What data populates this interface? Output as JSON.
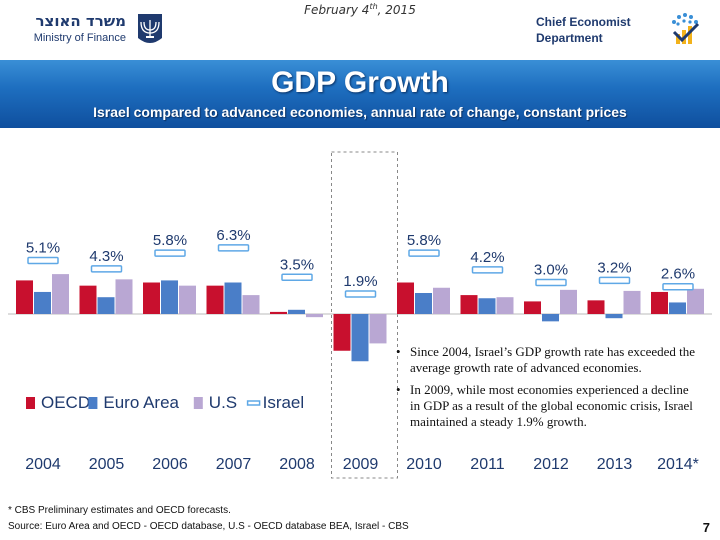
{
  "header": {
    "date_main": "February 4",
    "date_sup": "th",
    "date_year": ", 2015",
    "ministry_hebrew": "משרד האוצר",
    "ministry_english": "Ministry of Finance",
    "department": "Chief Economist Department",
    "emblem_icon": "menorah-emblem-icon",
    "department_icon": "chart-check-logo-icon"
  },
  "banner": {
    "title": "GDP Growth",
    "subtitle": "Israel compared to advanced economies, annual rate of change, constant prices"
  },
  "chart_data": {
    "type": "bar",
    "categories": [
      "2004",
      "2005",
      "2006",
      "2007",
      "2008",
      "2009",
      "2010",
      "2011",
      "2012",
      "2013",
      "2014*"
    ],
    "series": [
      {
        "name": "OECD",
        "color": "#c8102e",
        "values": [
          3.2,
          2.7,
          3.0,
          2.7,
          0.2,
          -3.5,
          3.0,
          1.8,
          1.2,
          1.3,
          2.1
        ]
      },
      {
        "name": "Euro Area",
        "color": "#4a7ec8",
        "values": [
          2.1,
          1.6,
          3.2,
          3.0,
          0.4,
          -4.5,
          2.0,
          1.5,
          -0.7,
          -0.4,
          1.1
        ]
      },
      {
        "name": "U.S",
        "color": "#b9a7d3",
        "values": [
          3.8,
          3.3,
          2.7,
          1.8,
          -0.3,
          -2.8,
          2.5,
          1.6,
          2.3,
          2.2,
          2.4
        ]
      },
      {
        "name": "Israel",
        "color": "#5fa8e6",
        "values": [
          5.1,
          4.3,
          5.8,
          6.3,
          3.5,
          1.9,
          5.8,
          4.2,
          3.0,
          3.2,
          2.6
        ]
      }
    ],
    "israel_labels": [
      "5.1%",
      "4.3%",
      "5.8%",
      "6.3%",
      "3.5%",
      "1.9%",
      "5.8%",
      "4.2%",
      "3.0%",
      "3.2%",
      "2.6%"
    ],
    "highlight_category": "2009",
    "ylim": [
      -5,
      7
    ],
    "grid": false,
    "legend_position": "bottom-left"
  },
  "notes": [
    "Since 2004, Israel’s GDP growth rate has exceeded the average growth rate of advanced economies.",
    "In 2009, while most economies experienced a decline in GDP as a result of the global economic crisis, Israel maintained a steady 1.9% growth."
  ],
  "footer": {
    "footnote": "* CBS Preliminary estimates and  OECD forecasts.",
    "source": "Source: Euro Area and OECD - OECD database, U.S - OECD database BEA, Israel - CBS",
    "page_number": "7"
  }
}
